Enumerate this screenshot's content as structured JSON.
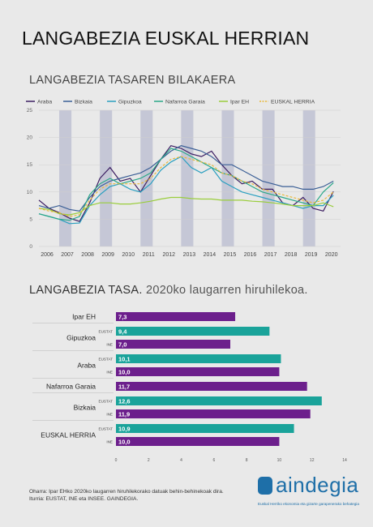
{
  "page": {
    "title": "LANGABEZIA EUSKAL HERRIAN",
    "footer_note": "Oharra: Ipar EHko 2020ko laugarren hiruhilekorako datuak behin-behinekoak dira.",
    "footer_source": "Iturria: EUSTAT, INE eta INSEE. GAINDEGIA.",
    "logo_text": "aindegia",
    "logo_tagline": "Euskal Herriko ekonomia eta gizarte garapenerako behategia"
  },
  "line_chart": {
    "title": "LANGABEZIA TASAREN BILAKAERA",
    "legend": [
      {
        "name": "Araba",
        "color": "#3d1f63"
      },
      {
        "name": "Bizkaia",
        "color": "#3b5f96"
      },
      {
        "name": "Gipuzkoa",
        "color": "#2a9fc0"
      },
      {
        "name": "Nafarroa Garaia",
        "color": "#2aa888"
      },
      {
        "name": "Ipar EH",
        "color": "#9acd3c"
      },
      {
        "name": "EUSKAL HERRIA",
        "color": "#e9b93a"
      }
    ],
    "y_ticks": [
      "0",
      "5",
      "10",
      "15",
      "20",
      "25"
    ],
    "x_labels": [
      "2006",
      "2007",
      "2008",
      "2009",
      "2010",
      "2011",
      "2012",
      "2013",
      "2014",
      "2015",
      "2016",
      "2017",
      "2018",
      "2019",
      "2020"
    ]
  },
  "bar_chart": {
    "title_bold": "LANGABEZIA TASA.",
    "title_light": "2020ko laugarren hiruhilekoa.",
    "groups": [
      {
        "label": "Ipar EH",
        "bars": [
          {
            "source": "",
            "value": "7,3"
          }
        ]
      },
      {
        "label": "Gipuzkoa",
        "bars": [
          {
            "source": "EUSTAT",
            "value": "9,4"
          },
          {
            "source": "INE",
            "value": "7,0"
          }
        ]
      },
      {
        "label": "Araba",
        "bars": [
          {
            "source": "EUSTAT",
            "value": "10,1"
          },
          {
            "source": "INE",
            "value": "10,0"
          }
        ]
      },
      {
        "label": "Nafarroa Garaia",
        "bars": [
          {
            "source": "",
            "value": "11,7"
          }
        ]
      },
      {
        "label": "Bizkaia",
        "bars": [
          {
            "source": "EUSTAT",
            "value": "12,6"
          },
          {
            "source": "INE",
            "value": "11,9"
          }
        ]
      },
      {
        "label": "EUSKAL HERRIA",
        "bars": [
          {
            "source": "EUSTAT",
            "value": "10,9"
          },
          {
            "source": "INE",
            "value": "10,0"
          }
        ]
      }
    ],
    "x_ticks": [
      "0",
      "2",
      "4",
      "6",
      "8",
      "10",
      "12",
      "14"
    ]
  },
  "chart_data": [
    {
      "type": "line",
      "title": "LANGABEZIA TASAREN BILAKAERA",
      "xlabel": "",
      "ylabel": "",
      "ylim": [
        0,
        25
      ],
      "x": [
        2006.0,
        2006.5,
        2007.0,
        2007.5,
        2008.0,
        2008.5,
        2009.0,
        2009.5,
        2010.0,
        2010.5,
        2011.0,
        2011.5,
        2012.0,
        2012.5,
        2013.0,
        2013.5,
        2014.0,
        2014.5,
        2015.0,
        2015.5,
        2016.0,
        2016.5,
        2017.0,
        2017.5,
        2018.0,
        2018.5,
        2019.0,
        2019.5,
        2020.0,
        2020.5
      ],
      "x_tick_labels": [
        "2006",
        "2007",
        "2008",
        "2009",
        "2010",
        "2011",
        "2012",
        "2013",
        "2014",
        "2015",
        "2016",
        "2017",
        "2018",
        "2019",
        "2020"
      ],
      "shaded_years": [
        "2007",
        "2009",
        "2011",
        "2013",
        "2015",
        "2017",
        "2019"
      ],
      "grid": true,
      "legend_position": "top",
      "series": [
        {
          "name": "Araba",
          "color": "#3d1f63",
          "values": [
            8.5,
            7.0,
            6.2,
            5.2,
            4.6,
            8.0,
            12.5,
            14.5,
            12.0,
            12.5,
            10.0,
            13.0,
            16.0,
            18.5,
            18.0,
            17.0,
            16.5,
            17.5,
            15.0,
            13.0,
            11.5,
            12.0,
            10.5,
            10.5,
            8.0,
            7.5,
            9.0,
            7.0,
            6.5,
            10.1
          ]
        },
        {
          "name": "Bizkaia",
          "color": "#3b5f96",
          "values": [
            7.5,
            7.0,
            7.5,
            6.8,
            6.5,
            9.0,
            11.0,
            12.0,
            12.5,
            13.0,
            13.5,
            14.5,
            16.0,
            17.5,
            18.5,
            18.0,
            17.5,
            16.5,
            15.0,
            15.0,
            14.0,
            13.0,
            12.0,
            11.5,
            11.0,
            11.0,
            10.5,
            10.5,
            11.0,
            12.0
          ]
        },
        {
          "name": "Gipuzkoa",
          "color": "#2a9fc0",
          "values": [
            6.0,
            5.5,
            5.0,
            4.2,
            4.3,
            7.5,
            9.5,
            11.0,
            11.5,
            10.5,
            10.0,
            11.5,
            14.0,
            15.5,
            16.5,
            14.5,
            13.5,
            14.5,
            12.0,
            11.0,
            10.0,
            9.5,
            9.0,
            8.5,
            8.0,
            7.5,
            7.0,
            7.5,
            7.5,
            9.4
          ]
        },
        {
          "name": "Nafarroa Garaia",
          "color": "#2aa888",
          "values": [
            6.0,
            5.5,
            5.0,
            4.8,
            5.5,
            9.5,
            11.5,
            12.5,
            11.5,
            12.0,
            12.5,
            13.5,
            16.0,
            18.0,
            17.5,
            16.5,
            15.5,
            14.5,
            13.5,
            13.0,
            12.0,
            11.0,
            10.0,
            9.5,
            9.0,
            8.5,
            8.0,
            7.5,
            10.0,
            11.7
          ]
        },
        {
          "name": "Ipar EH",
          "color": "#9acd3c",
          "values": [
            7.0,
            6.8,
            6.0,
            5.8,
            6.2,
            7.5,
            8.0,
            8.0,
            7.8,
            7.8,
            8.0,
            8.3,
            8.7,
            9.0,
            9.0,
            8.8,
            8.7,
            8.7,
            8.5,
            8.5,
            8.5,
            8.3,
            8.2,
            8.0,
            7.8,
            7.5,
            7.5,
            7.5,
            8.0,
            7.3
          ]
        },
        {
          "name": "EUSKAL HERRIA",
          "color": "#e9b93a",
          "values": [
            7.0,
            6.5,
            6.2,
            5.5,
            5.8,
            8.5,
            10.5,
            11.5,
            11.5,
            11.5,
            11.5,
            12.5,
            14.5,
            16.0,
            16.5,
            16.0,
            15.5,
            15.0,
            13.5,
            13.0,
            12.0,
            11.5,
            10.5,
            10.0,
            9.5,
            9.0,
            8.5,
            8.0,
            8.5,
            10.0
          ]
        }
      ]
    },
    {
      "type": "bar",
      "title": "LANGABEZIA TASA. 2020ko laugarren hiruhilekoa.",
      "orientation": "horizontal",
      "xlim": [
        0,
        14
      ],
      "categories": [
        "Ipar EH",
        "Gipuzkoa EUSTAT",
        "Gipuzkoa INE",
        "Araba EUSTAT",
        "Araba INE",
        "Nafarroa Garaia",
        "Bizkaia EUSTAT",
        "Bizkaia INE",
        "EUSKAL HERRIA EUSTAT",
        "EUSKAL HERRIA INE"
      ],
      "values": [
        7.3,
        9.4,
        7.0,
        10.1,
        10.0,
        11.7,
        12.6,
        11.9,
        10.9,
        10.0
      ],
      "colors": {
        "EUSTAT": "#1aa39a",
        "INE": "#6c1f8c",
        "single": "#6c1f8c",
        "Nafarroa Garaia": "#6c1f8c"
      }
    }
  ]
}
